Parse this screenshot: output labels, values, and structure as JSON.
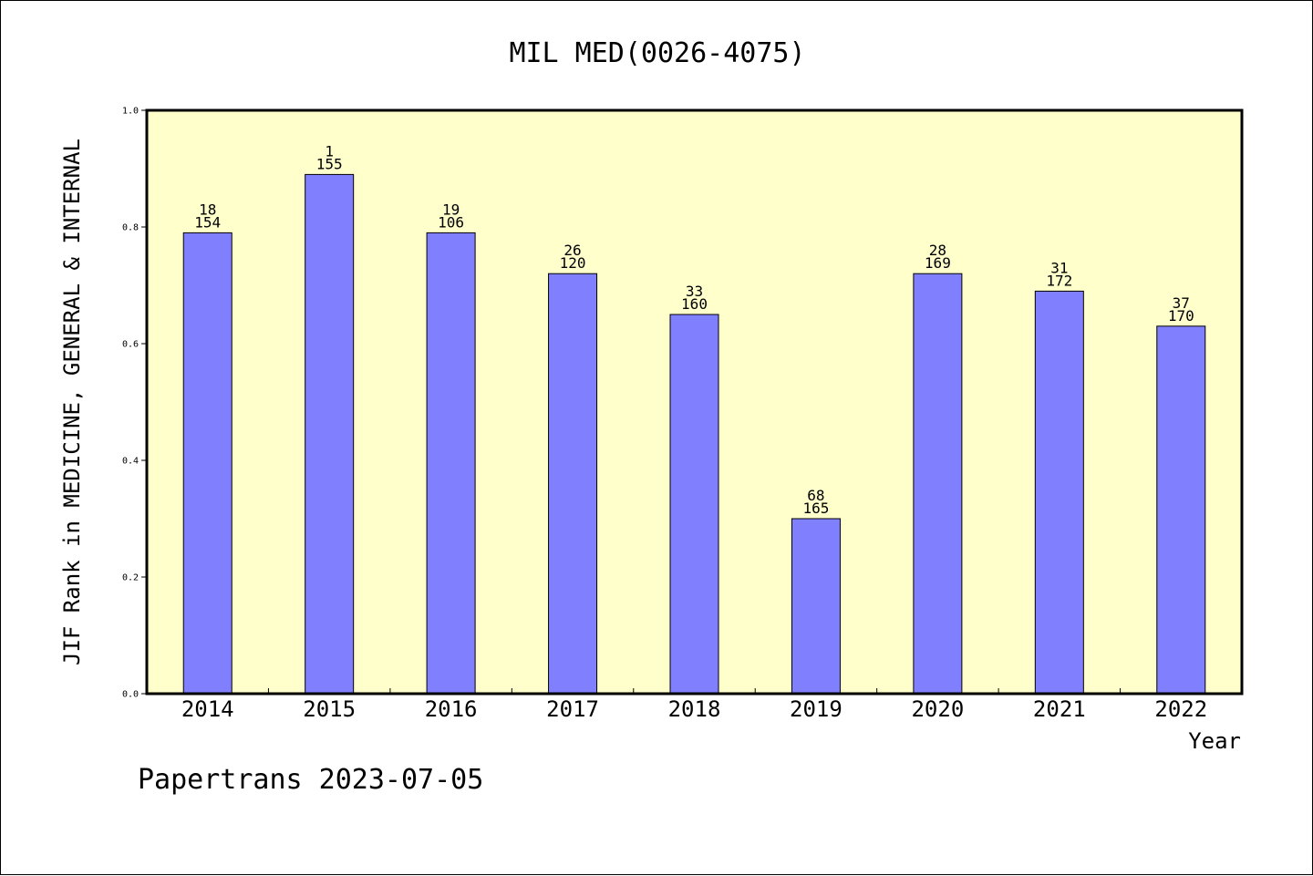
{
  "chart_data": {
    "type": "bar",
    "title": "MIL MED(0026-4075)",
    "xlabel": "Year",
    "ylabel": "JIF Rank in MEDICINE, GENERAL & INTERNAL",
    "ylim": [
      0,
      1.0
    ],
    "yticks": [
      "0.0",
      "0.2",
      "0.4",
      "0.6",
      "0.8",
      "1.0"
    ],
    "ytick_values": [
      0,
      0.2,
      0.4,
      0.6,
      0.8,
      1.0
    ],
    "categories": [
      "2014",
      "2015",
      "2016",
      "2017",
      "2018",
      "2019",
      "2020",
      "2021",
      "2022"
    ],
    "values": [
      0.79,
      0.89,
      0.79,
      0.72,
      0.65,
      0.3,
      0.72,
      0.69,
      0.63
    ],
    "rank_labels": [
      "18",
      "1",
      "19",
      "26",
      "33",
      "68",
      "28",
      "31",
      "37"
    ],
    "total_labels": [
      "154",
      "155",
      "106",
      "120",
      "160",
      "165",
      "169",
      "172",
      "170"
    ],
    "colors": {
      "bar": "#8080ff",
      "plot_bg": "#ffffcc",
      "axis": "#000000"
    },
    "grid": false,
    "legend": "none"
  },
  "footer": {
    "text": "Papertrans 2023-07-05"
  }
}
